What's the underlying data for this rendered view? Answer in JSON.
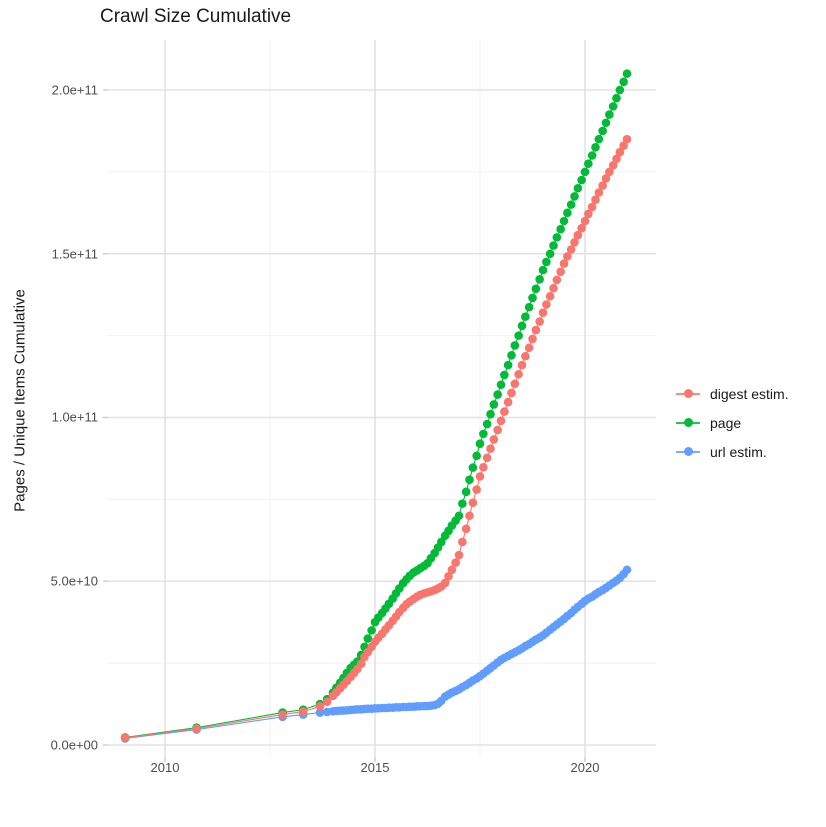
{
  "title": "Crawl Size Cumulative",
  "y_axis": {
    "label": "Pages / Unique Items Cumulative",
    "ticks": [
      "0.0e+00",
      "5.0e+10",
      "1.0e+11",
      "1.5e+11",
      "2.0e+11"
    ]
  },
  "x_axis": {
    "ticks": [
      "2010",
      "2015",
      "2020"
    ]
  },
  "legend": {
    "items": [
      {
        "label": "digest estim.",
        "color": "#F8766D"
      },
      {
        "label": "page",
        "color": "#00BA38"
      },
      {
        "label": "url estim.",
        "color": "#619CFF"
      }
    ]
  },
  "colors": {
    "digest": "#F8766D",
    "page": "#00BA38",
    "url": "#619CFF",
    "grid_major": "#e3e3e3",
    "grid_minor": "#f1f1f1",
    "tick_mark": "#cccccc",
    "tick_text": "#4d4d4d",
    "text": "#1a1a1a",
    "background": "#ffffff"
  },
  "chart_data": {
    "type": "scatter",
    "title": "Crawl Size Cumulative",
    "xlabel": "",
    "ylabel": "Pages / Unique Items Cumulative",
    "point_format": "[decimal_year, value_in_1e9]",
    "value_unit": 1000000000,
    "xlim": [
      2008.6,
      2021.7
    ],
    "ylim": [
      0,
      215000000000
    ],
    "x_ticks": [
      2010,
      2015,
      2020
    ],
    "x_minor_ticks": [
      2012.5,
      2017.5
    ],
    "y_ticks": [
      0,
      50000000000,
      100000000000,
      150000000000,
      200000000000
    ],
    "y_minor_ticks": [
      25000000000,
      75000000000,
      125000000000,
      175000000000
    ],
    "grid": "major+minor",
    "legend_position": "right",
    "series": [
      {
        "name": "digest estim.",
        "color": "#F8766D",
        "points": [
          [
            2009.05,
            2.2
          ],
          [
            2010.75,
            5.0
          ],
          [
            2012.8,
            9.3
          ],
          [
            2013.29,
            10.2
          ],
          [
            2013.69,
            11.8
          ],
          [
            2013.86,
            13.2
          ],
          [
            2014.0,
            15.0
          ],
          [
            2014.08,
            16.1
          ],
          [
            2014.17,
            17.3
          ],
          [
            2014.25,
            18.4
          ],
          [
            2014.33,
            19.5
          ],
          [
            2014.42,
            20.8
          ],
          [
            2014.5,
            22.0
          ],
          [
            2014.58,
            23.2
          ],
          [
            2014.67,
            24.8
          ],
          [
            2014.75,
            26.9
          ],
          [
            2014.83,
            28.4
          ],
          [
            2014.92,
            30.0
          ],
          [
            2015.0,
            31.5
          ],
          [
            2015.08,
            32.8
          ],
          [
            2015.17,
            34.0
          ],
          [
            2015.25,
            35.3
          ],
          [
            2015.33,
            36.5
          ],
          [
            2015.42,
            37.9
          ],
          [
            2015.5,
            39.2
          ],
          [
            2015.58,
            40.6
          ],
          [
            2015.67,
            41.9
          ],
          [
            2015.75,
            43.0
          ],
          [
            2015.83,
            43.8
          ],
          [
            2015.92,
            44.6
          ],
          [
            2016.0,
            45.3
          ],
          [
            2016.08,
            45.9
          ],
          [
            2016.17,
            46.3
          ],
          [
            2016.25,
            46.6
          ],
          [
            2016.33,
            46.9
          ],
          [
            2016.42,
            47.3
          ],
          [
            2016.5,
            47.8
          ],
          [
            2016.58,
            48.4
          ],
          [
            2016.67,
            49.5
          ],
          [
            2016.75,
            51.5
          ],
          [
            2016.83,
            53.5
          ],
          [
            2016.92,
            55.7
          ],
          [
            2017.0,
            58.0
          ],
          [
            2017.08,
            62.0
          ],
          [
            2017.17,
            66.0
          ],
          [
            2017.25,
            70.0
          ],
          [
            2017.33,
            74.0
          ],
          [
            2017.42,
            78.0
          ],
          [
            2017.5,
            82.0
          ],
          [
            2017.58,
            84.8
          ],
          [
            2017.67,
            87.7
          ],
          [
            2017.75,
            90.5
          ],
          [
            2017.83,
            93.3
          ],
          [
            2017.92,
            96.2
          ],
          [
            2018.0,
            99.0
          ],
          [
            2018.08,
            101.8
          ],
          [
            2018.17,
            104.7
          ],
          [
            2018.25,
            107.5
          ],
          [
            2018.33,
            110.3
          ],
          [
            2018.42,
            113.2
          ],
          [
            2018.5,
            116.0
          ],
          [
            2018.58,
            118.7
          ],
          [
            2018.67,
            121.3
          ],
          [
            2018.75,
            124.0
          ],
          [
            2018.83,
            126.7
          ],
          [
            2018.92,
            129.3
          ],
          [
            2019.0,
            132.0
          ],
          [
            2019.08,
            134.5
          ],
          [
            2019.17,
            137.0
          ],
          [
            2019.25,
            139.5
          ],
          [
            2019.33,
            142.0
          ],
          [
            2019.42,
            144.5
          ],
          [
            2019.5,
            147.0
          ],
          [
            2019.58,
            149.2
          ],
          [
            2019.67,
            151.3
          ],
          [
            2019.75,
            153.5
          ],
          [
            2019.83,
            155.7
          ],
          [
            2019.92,
            157.8
          ],
          [
            2020.0,
            160.0
          ],
          [
            2020.08,
            162.2
          ],
          [
            2020.17,
            164.3
          ],
          [
            2020.25,
            166.5
          ],
          [
            2020.33,
            168.7
          ],
          [
            2020.42,
            170.8
          ],
          [
            2020.5,
            173.0
          ],
          [
            2020.58,
            175.0
          ],
          [
            2020.67,
            177.0
          ],
          [
            2020.75,
            179.0
          ],
          [
            2020.83,
            181.0
          ],
          [
            2020.92,
            183.0
          ],
          [
            2021.0,
            185.0
          ]
        ]
      },
      {
        "name": "page",
        "color": "#00BA38",
        "points": [
          [
            2009.05,
            2.3
          ],
          [
            2010.75,
            5.3
          ],
          [
            2012.8,
            9.9
          ],
          [
            2013.29,
            10.8
          ],
          [
            2013.69,
            12.5
          ],
          [
            2013.86,
            14.0
          ],
          [
            2014.0,
            16.0
          ],
          [
            2014.08,
            17.5
          ],
          [
            2014.17,
            19.0
          ],
          [
            2014.25,
            20.5
          ],
          [
            2014.33,
            22.0
          ],
          [
            2014.42,
            23.5
          ],
          [
            2014.5,
            24.5
          ],
          [
            2014.58,
            25.5
          ],
          [
            2014.67,
            27.5
          ],
          [
            2014.75,
            30.0
          ],
          [
            2014.83,
            32.5
          ],
          [
            2014.92,
            35.0
          ],
          [
            2015.0,
            37.5
          ],
          [
            2015.08,
            38.9
          ],
          [
            2015.17,
            40.3
          ],
          [
            2015.25,
            41.7
          ],
          [
            2015.33,
            43.1
          ],
          [
            2015.42,
            44.7
          ],
          [
            2015.5,
            46.3
          ],
          [
            2015.58,
            47.8
          ],
          [
            2015.67,
            49.4
          ],
          [
            2015.75,
            50.6
          ],
          [
            2015.83,
            51.7
          ],
          [
            2015.92,
            52.7
          ],
          [
            2016.0,
            53.3
          ],
          [
            2016.08,
            54.0
          ],
          [
            2016.17,
            54.7
          ],
          [
            2016.25,
            55.5
          ],
          [
            2016.33,
            57.0
          ],
          [
            2016.42,
            58.6
          ],
          [
            2016.5,
            60.3
          ],
          [
            2016.58,
            62.0
          ],
          [
            2016.67,
            63.9
          ],
          [
            2016.75,
            65.4
          ],
          [
            2016.83,
            67.0
          ],
          [
            2016.92,
            68.5
          ],
          [
            2017.0,
            70.0
          ],
          [
            2017.08,
            73.7
          ],
          [
            2017.17,
            77.3
          ],
          [
            2017.25,
            81.0
          ],
          [
            2017.33,
            84.7
          ],
          [
            2017.42,
            88.3
          ],
          [
            2017.5,
            92.0
          ],
          [
            2017.58,
            95.0
          ],
          [
            2017.67,
            98.0
          ],
          [
            2017.75,
            101.0
          ],
          [
            2017.83,
            104.0
          ],
          [
            2017.92,
            107.0
          ],
          [
            2018.0,
            110.0
          ],
          [
            2018.08,
            113.0
          ],
          [
            2018.17,
            116.0
          ],
          [
            2018.25,
            119.0
          ],
          [
            2018.33,
            122.0
          ],
          [
            2018.42,
            125.0
          ],
          [
            2018.5,
            128.0
          ],
          [
            2018.58,
            130.8
          ],
          [
            2018.67,
            133.7
          ],
          [
            2018.75,
            136.5
          ],
          [
            2018.83,
            139.3
          ],
          [
            2018.92,
            142.2
          ],
          [
            2019.0,
            145.0
          ],
          [
            2019.08,
            147.5
          ],
          [
            2019.17,
            150.0
          ],
          [
            2019.25,
            152.5
          ],
          [
            2019.33,
            155.0
          ],
          [
            2019.42,
            157.5
          ],
          [
            2019.5,
            160.0
          ],
          [
            2019.58,
            162.5
          ],
          [
            2019.67,
            165.0
          ],
          [
            2019.75,
            167.5
          ],
          [
            2019.83,
            170.0
          ],
          [
            2019.92,
            172.5
          ],
          [
            2020.0,
            175.0
          ],
          [
            2020.08,
            177.5
          ],
          [
            2020.17,
            180.0
          ],
          [
            2020.25,
            182.5
          ],
          [
            2020.33,
            185.0
          ],
          [
            2020.42,
            187.5
          ],
          [
            2020.5,
            190.0
          ],
          [
            2020.58,
            192.5
          ],
          [
            2020.67,
            195.0
          ],
          [
            2020.75,
            197.5
          ],
          [
            2020.83,
            200.0
          ],
          [
            2020.92,
            202.5
          ],
          [
            2021.0,
            205.0
          ]
        ]
      },
      {
        "name": "url estim.",
        "color": "#619CFF",
        "points": [
          [
            2009.05,
            2.0
          ],
          [
            2010.75,
            4.7
          ],
          [
            2012.8,
            8.6
          ],
          [
            2013.29,
            9.3
          ],
          [
            2013.69,
            9.9
          ],
          [
            2013.86,
            10.1
          ],
          [
            2014.0,
            10.3
          ],
          [
            2014.08,
            10.4
          ],
          [
            2014.17,
            10.5
          ],
          [
            2014.25,
            10.5
          ],
          [
            2014.33,
            10.6
          ],
          [
            2014.42,
            10.7
          ],
          [
            2014.5,
            10.8
          ],
          [
            2014.58,
            10.9
          ],
          [
            2014.67,
            10.9
          ],
          [
            2014.75,
            11.0
          ],
          [
            2014.83,
            11.1
          ],
          [
            2014.92,
            11.1
          ],
          [
            2015.0,
            11.2
          ],
          [
            2015.08,
            11.2
          ],
          [
            2015.17,
            11.3
          ],
          [
            2015.25,
            11.3
          ],
          [
            2015.33,
            11.4
          ],
          [
            2015.42,
            11.4
          ],
          [
            2015.5,
            11.5
          ],
          [
            2015.58,
            11.5
          ],
          [
            2015.67,
            11.6
          ],
          [
            2015.75,
            11.6
          ],
          [
            2015.83,
            11.7
          ],
          [
            2015.92,
            11.7
          ],
          [
            2016.0,
            11.8
          ],
          [
            2016.08,
            11.8
          ],
          [
            2016.17,
            11.9
          ],
          [
            2016.25,
            11.9
          ],
          [
            2016.33,
            12.0
          ],
          [
            2016.42,
            12.2
          ],
          [
            2016.5,
            12.6
          ],
          [
            2016.58,
            13.5
          ],
          [
            2016.67,
            14.8
          ],
          [
            2016.75,
            15.4
          ],
          [
            2016.83,
            16.0
          ],
          [
            2016.92,
            16.5
          ],
          [
            2017.0,
            17.0
          ],
          [
            2017.08,
            17.7
          ],
          [
            2017.17,
            18.3
          ],
          [
            2017.25,
            19.0
          ],
          [
            2017.33,
            19.7
          ],
          [
            2017.42,
            20.3
          ],
          [
            2017.5,
            21.0
          ],
          [
            2017.58,
            21.8
          ],
          [
            2017.67,
            22.7
          ],
          [
            2017.75,
            23.5
          ],
          [
            2017.83,
            24.3
          ],
          [
            2017.92,
            25.2
          ],
          [
            2018.0,
            26.0
          ],
          [
            2018.08,
            26.6
          ],
          [
            2018.17,
            27.2
          ],
          [
            2018.25,
            27.8
          ],
          [
            2018.33,
            28.3
          ],
          [
            2018.42,
            28.9
          ],
          [
            2018.5,
            29.5
          ],
          [
            2018.58,
            30.2
          ],
          [
            2018.67,
            30.8
          ],
          [
            2018.75,
            31.5
          ],
          [
            2018.83,
            32.2
          ],
          [
            2018.92,
            32.8
          ],
          [
            2019.0,
            33.5
          ],
          [
            2019.08,
            34.3
          ],
          [
            2019.17,
            35.2
          ],
          [
            2019.25,
            36.0
          ],
          [
            2019.33,
            36.8
          ],
          [
            2019.42,
            37.7
          ],
          [
            2019.5,
            38.5
          ],
          [
            2019.58,
            39.4
          ],
          [
            2019.67,
            40.3
          ],
          [
            2019.75,
            41.3
          ],
          [
            2019.83,
            42.2
          ],
          [
            2019.92,
            43.1
          ],
          [
            2020.0,
            44.0
          ],
          [
            2020.08,
            44.7
          ],
          [
            2020.17,
            45.3
          ],
          [
            2020.25,
            46.0
          ],
          [
            2020.33,
            46.7
          ],
          [
            2020.42,
            47.3
          ],
          [
            2020.5,
            48.0
          ],
          [
            2020.58,
            48.7
          ],
          [
            2020.67,
            49.5
          ],
          [
            2020.75,
            50.2
          ],
          [
            2020.83,
            51.0
          ],
          [
            2020.92,
            52.2
          ],
          [
            2021.0,
            53.5
          ]
        ]
      }
    ]
  }
}
